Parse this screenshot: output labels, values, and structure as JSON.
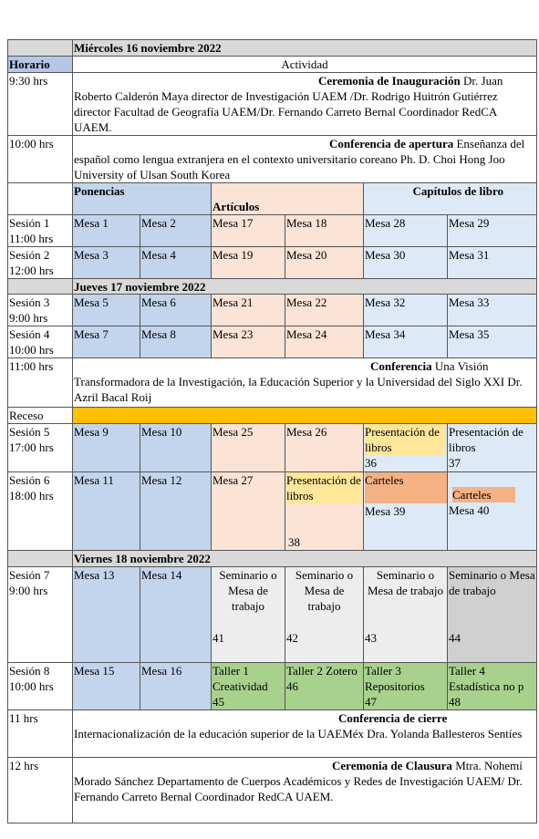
{
  "day_headers": [
    "Miércoles 16 noviembre 2022",
    "Jueves 17 noviembre 2022",
    "Viernes 18 noviembre 2022"
  ],
  "columns": {
    "time": "Horario",
    "activity": "Actividad"
  },
  "events": [
    {
      "time": "9:30 hrs",
      "title": "Ceremonia de Inauguración",
      "text": "Dr. Juan Roberto Calderón Maya director de Investigación UAEM /Dr. Rodrigo Huitrón Gutiérrez director Facultad de Geografía UAEM/Dr. Fernando Carreto Bernal Coordinador RedCA UAEM."
    },
    {
      "time": "10:00 hrs",
      "title": "Conferencia de apertura",
      "text": "Enseñanza del español como lengua extranjera en el contexto universitario coreano Ph. D. Choi Hong Joo University of Ulsan South Korea"
    },
    {
      "time": "11:00 hrs",
      "title": "Conferencia",
      "text": "Una Visión Transformadora de la Investigación, la Educación Superior y la Universidad del Siglo XXI Dr. Azril Bacal Roij"
    },
    {
      "time": "11 hrs",
      "title": "Conferencia de cierre",
      "text": "Internacionalización de la educación superior de la UAEMéx Dra. Yolanda Ballesteros Sentíes"
    },
    {
      "time": "12 hrs",
      "title": "Ceremonia de Clausura",
      "text": "Mtra. Nohemí Morado Sánchez Departamento de Cuerpos Académicos y Redes de Investigación UAEM/ Dr. Fernando Carreto Bernal Coordinador RedCA UAEM."
    }
  ],
  "groups": [
    "Ponencias",
    "Artículos",
    "Capítulos de libro"
  ],
  "recess": "Receso",
  "sessions": [
    {
      "label": "Sesión 1",
      "time": "11:00 hrs",
      "cells": [
        "Mesa 1",
        "Mesa 2",
        "Mesa 17",
        "Mesa 18",
        "Mesa 28",
        "Mesa 29"
      ]
    },
    {
      "label": "Sesión 2",
      "time": "12:00 hrs",
      "cells": [
        "Mesa 3",
        "Mesa 4",
        "Mesa 19",
        "Mesa 20",
        "Mesa 30",
        "Mesa 31"
      ]
    },
    {
      "label": "Sesión 3",
      "time": "9:00 hrs",
      "cells": [
        "Mesa 5",
        "Mesa 6",
        "Mesa 21",
        "Mesa 22",
        "Mesa 32",
        "Mesa 33"
      ]
    },
    {
      "label": "Sesión 4",
      "time": "10:00 hrs",
      "cells": [
        "Mesa 7",
        "Mesa 8",
        "Mesa 23",
        "Mesa 24",
        "Mesa 34",
        "Mesa 35"
      ]
    },
    {
      "label": "Sesión 5",
      "time": "17:00 hrs",
      "cells": [
        "Mesa 9",
        "Mesa 10",
        "Mesa 25",
        "Mesa 26",
        {
          "label": "Presentación de libros",
          "number": "36"
        },
        {
          "label": "Presentación de libros",
          "number": "37"
        }
      ]
    },
    {
      "label": "Sesión 6",
      "time": "18:00 hrs",
      "cells": [
        "Mesa 11",
        "Mesa 12",
        "Mesa 27",
        {
          "label": "Presentación de libros",
          "number": "38"
        },
        {
          "label": "Carteles",
          "number": "Mesa 39"
        },
        {
          "label": "Carteles",
          "number": "Mesa 40"
        }
      ]
    },
    {
      "label": "Sesión 7",
      "time": "9:00 hrs",
      "cells": [
        "Mesa 13",
        "Mesa 14",
        {
          "label": "Seminario o Mesa de trabajo",
          "number": "41"
        },
        {
          "label": "Seminario o Mesa de trabajo",
          "number": "42"
        },
        {
          "label": "Seminario o Mesa de trabajo",
          "number": "43"
        },
        {
          "label": "Seminario o Mesa de trabajo",
          "number": "44"
        }
      ]
    },
    {
      "label": "Sesión 8",
      "time": "10:00 hrs",
      "cells": [
        "Mesa 15",
        "Mesa 16",
        {
          "label": "Taller 1 Creatividad",
          "number": "45"
        },
        {
          "label": "Taller 2 Zotero",
          "number": "46"
        },
        {
          "label": "Taller 3 Repositorios",
          "number": "47"
        },
        {
          "label": "Taller 4 Estadística no p",
          "number": "48"
        }
      ]
    }
  ]
}
